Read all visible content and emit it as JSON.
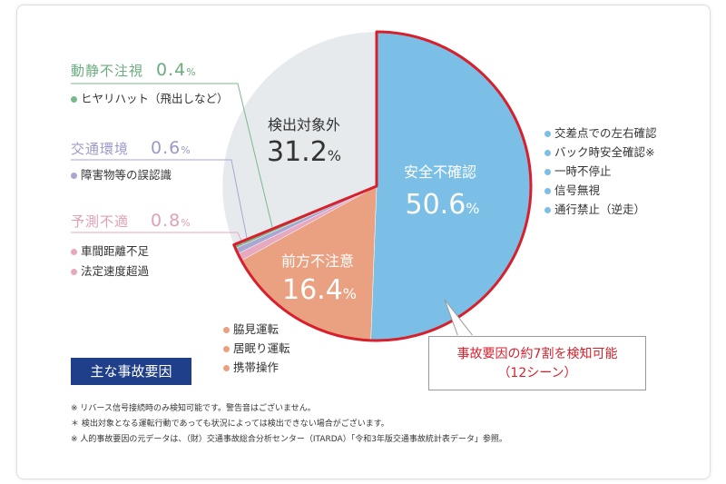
{
  "chart_data": {
    "type": "pie",
    "unit": "%",
    "slices": [
      {
        "name": "安全不確認",
        "value": 50.6,
        "color": "#7bbfe6",
        "items": [
          "交差点での左右確認",
          "バック時安全確認※",
          "一時不停止",
          "信号無視",
          "通行禁止（逆走）"
        ]
      },
      {
        "name": "前方不注意",
        "value": 16.4,
        "color": "#e9a182",
        "items": [
          "脇見運転",
          "居眠り運転",
          "携帯操作"
        ]
      },
      {
        "name": "予測不適",
        "value": 0.8,
        "color": "#e6a9c0",
        "items": [
          "車間距離不足",
          "法定速度超過"
        ]
      },
      {
        "name": "交通環境",
        "value": 0.6,
        "color": "#a7a7d2",
        "items": [
          "障害物等の誤認識"
        ]
      },
      {
        "name": "動静不注視",
        "value": 0.4,
        "color": "#78b98a",
        "items": [
          "ヒヤリハット（飛出しなど）"
        ]
      },
      {
        "name": "検出対象外",
        "value": 31.2,
        "color": "#e6eaed",
        "items": []
      }
    ],
    "highlight_color": "#d7202c",
    "legend_title": "主な事故要因",
    "callout": {
      "line1": "事故要因の約7割を検知可能",
      "line2": "（12シーン）"
    }
  },
  "notes": [
    "※ リバース信号接続時のみ検知可能です。警告音はございません。",
    "＊ 検出対象となる運転行動であっても状況によっては検出できない場合がございます。",
    "※ 人的事故要因の元データは、（財）交通事故総合分析センター（ITARDA）「令和3年版交通事故統計表データ」参照。"
  ]
}
